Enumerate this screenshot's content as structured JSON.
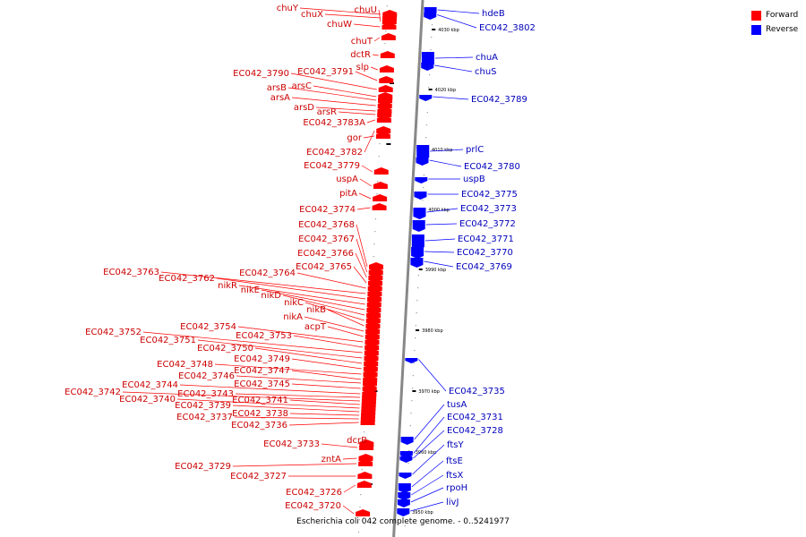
{
  "legend": {
    "forward_label": "Forward",
    "reverse_label": "Reverse",
    "forward_color": "#ff0000",
    "reverse_color": "#0000ff"
  },
  "footer": "Escherichia coli 042 complete genome. - 0..5241977",
  "colors": {
    "forward": "#ff0000",
    "forward_label": "#cc0000",
    "reverse": "#0000ff",
    "reverse_label": "#0000bb",
    "axis": "#888888"
  },
  "scale_labels": [
    "4040 kbp",
    "4030 kbp",
    "4020 kbp",
    "4010 kbp",
    "4000 kbp",
    "3990 kbp",
    "3980 kbp",
    "3970 kbp",
    "3960 kbp",
    "3950 kbp"
  ],
  "forward_genes": [
    "chuY",
    "chuX",
    "chuU",
    "chuW",
    "chuT",
    "dctR",
    "slp",
    "EC042_3791",
    "EC042_3790",
    "arsC",
    "arsB",
    "arsA",
    "arsD",
    "arsR",
    "EC042_3783A",
    "gor",
    "EC042_3782",
    "EC042_3779",
    "uspA",
    "pitA",
    "EC042_3774",
    "EC042_3768",
    "EC042_3767",
    "EC042_3766",
    "EC042_3765",
    "EC042_3764",
    "EC042_3763",
    "EC042_3762",
    "nikR",
    "nikE",
    "nikD",
    "nikC",
    "nikB",
    "nikA",
    "acpT",
    "EC042_3754",
    "EC042_3753",
    "EC042_3752",
    "EC042_3751",
    "EC042_3750",
    "EC042_3749",
    "EC042_3748",
    "EC042_3747",
    "EC042_3746",
    "EC042_3745",
    "EC042_3744",
    "EC042_3743",
    "EC042_3742",
    "EC042_3741",
    "EC042_3740",
    "EC042_3739",
    "EC042_3738",
    "EC042_3737",
    "EC042_3736",
    "dcrB",
    "EC042_3733",
    "EC042_3729",
    "zntA",
    "EC042_3727",
    "EC042_3726",
    "EC042_3720"
  ],
  "reverse_genes": [
    "hdeB",
    "EC042_3802",
    "chuA",
    "chuS",
    "EC042_3789",
    "prlC",
    "EC042_3780",
    "uspB",
    "EC042_3775",
    "EC042_3773",
    "EC042_3772",
    "EC042_3771",
    "EC042_3770",
    "EC042_3769",
    "EC042_3735",
    "tusA",
    "EC042_3731",
    "EC042_3728",
    "ftsY",
    "ftsE",
    "ftsX",
    "rpoH",
    "livJ"
  ]
}
